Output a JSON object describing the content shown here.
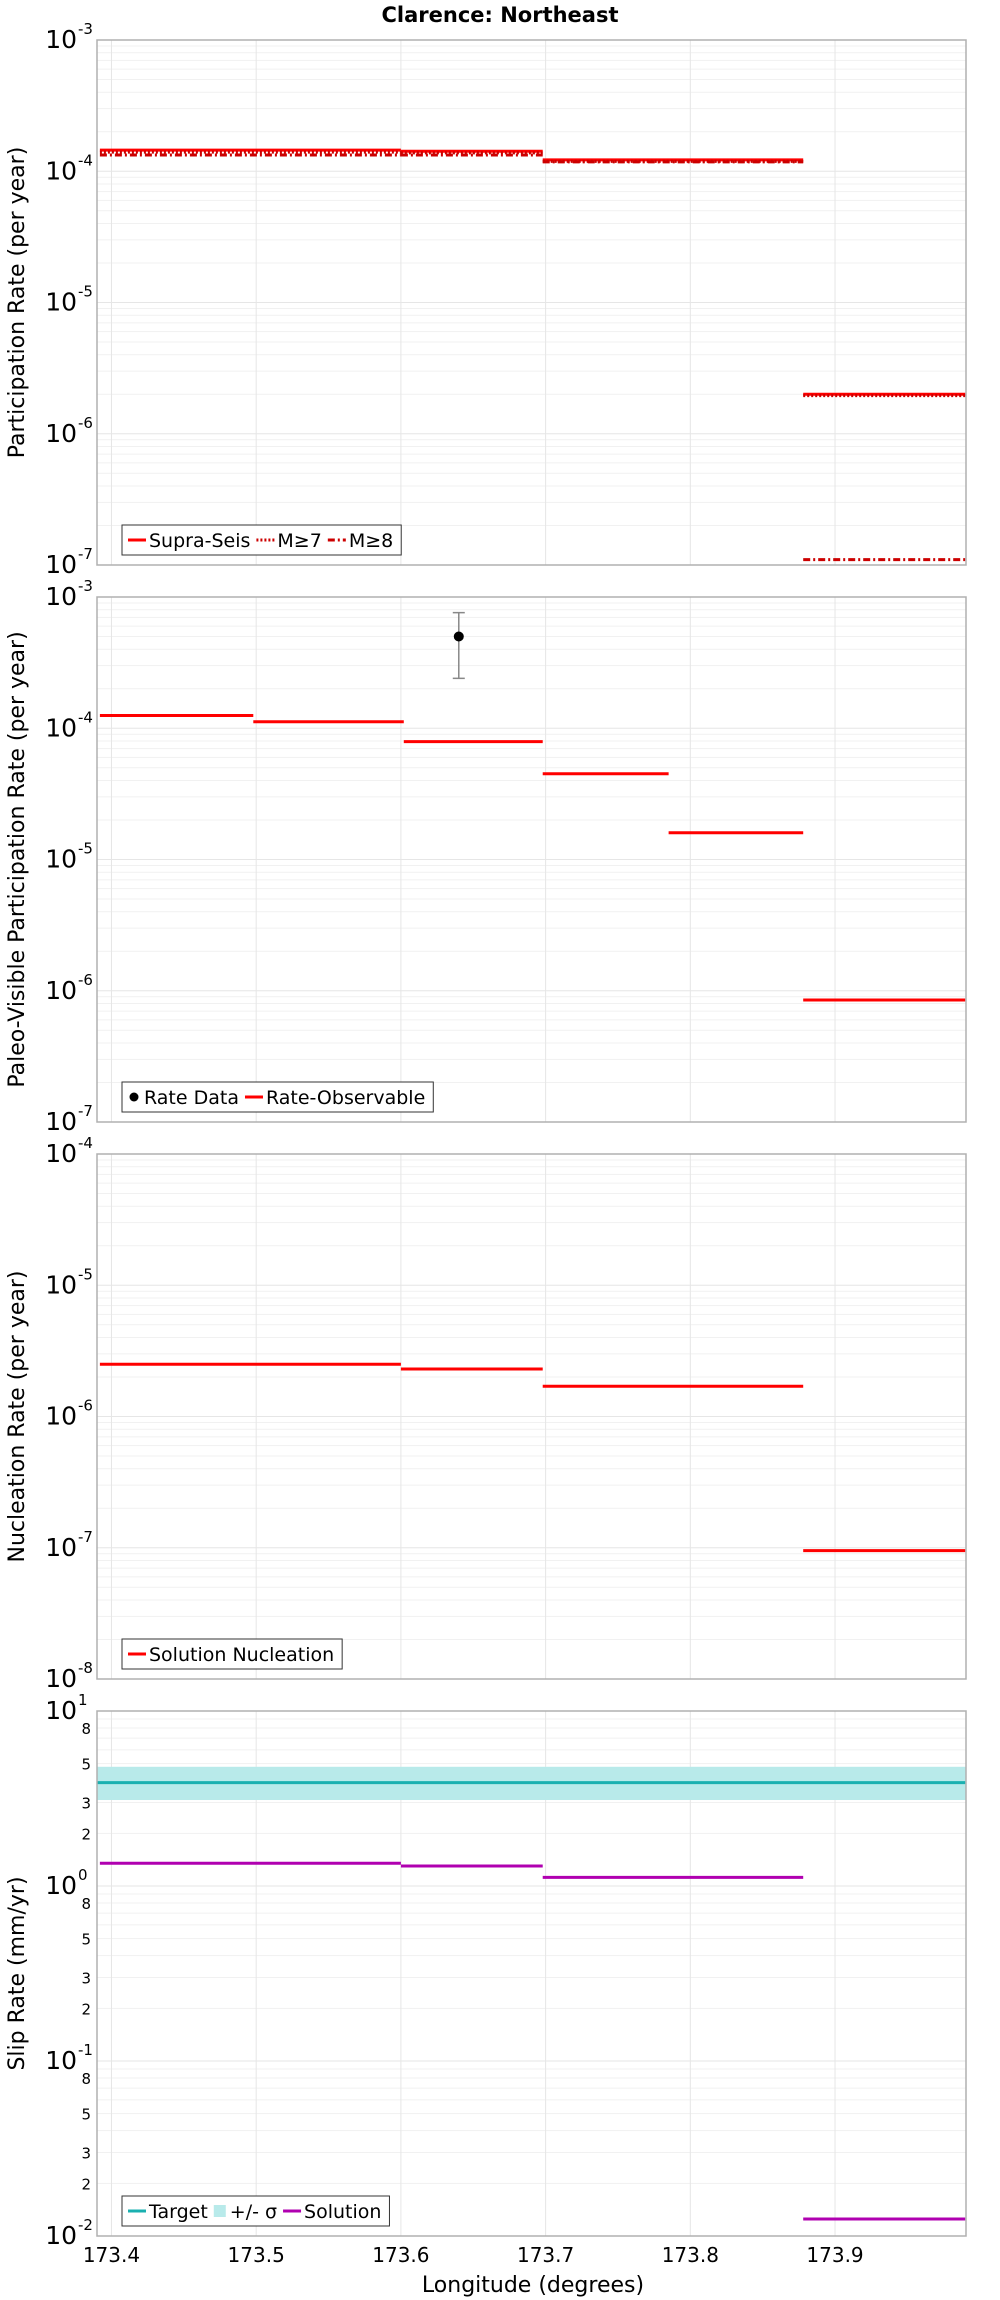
{
  "title": "Clarence: Northeast",
  "xlabel": "Longitude (degrees)",
  "xlim": [
    173.39,
    173.9905
  ],
  "xticks": [
    "173.4",
    "173.5",
    "173.6",
    "173.7",
    "173.8",
    "173.9"
  ],
  "colors": {
    "red": "#ff0000",
    "darkred": "#cc0000",
    "teal": "#1ab0b0",
    "band": "#b8eaea",
    "magenta": "#b000b0",
    "grid": "#e6e6e6"
  },
  "chart_data": [
    {
      "type": "line",
      "ylabel": "Participation Rate (per year)",
      "yscale": "log",
      "ylim": [
        1e-07,
        0.001
      ],
      "yticks": [
        {
          "base": "10",
          "exp": "-7"
        },
        {
          "base": "10",
          "exp": "-6"
        },
        {
          "base": "10",
          "exp": "-5"
        },
        {
          "base": "10",
          "exp": "-4"
        },
        {
          "base": "10",
          "exp": "-3"
        }
      ],
      "legend": [
        "Supra-Seis",
        "M≥7",
        "M≥8"
      ],
      "series": [
        {
          "name": "Supra-Seis",
          "style": "solid",
          "segments": [
            [
              173.392,
              173.6,
              0.000145
            ],
            [
              173.6,
              173.698,
              0.000142
            ],
            [
              173.698,
              173.878,
              0.000122
            ],
            [
              173.878,
              173.99,
              2e-06
            ]
          ]
        },
        {
          "name": "M≥7",
          "style": "dotted",
          "segments": [
            [
              173.392,
              173.6,
              0.00014
            ],
            [
              173.6,
              173.698,
              0.000138
            ],
            [
              173.698,
              173.878,
              0.000119
            ],
            [
              173.878,
              173.99,
              1.95e-06
            ]
          ]
        },
        {
          "name": "M≥8",
          "style": "dashdot",
          "segments": [
            [
              173.392,
              173.6,
              0.000133
            ],
            [
              173.6,
              173.698,
              0.000133
            ],
            [
              173.698,
              173.878,
              0.000118
            ],
            [
              173.878,
              173.99,
              1.1e-07
            ]
          ]
        }
      ]
    },
    {
      "type": "line",
      "ylabel": "Paleo-Visible Participation Rate (per year)",
      "yscale": "log",
      "ylim": [
        1e-07,
        0.001
      ],
      "yticks": [
        {
          "base": "10",
          "exp": "-7"
        },
        {
          "base": "10",
          "exp": "-6"
        },
        {
          "base": "10",
          "exp": "-5"
        },
        {
          "base": "10",
          "exp": "-4"
        },
        {
          "base": "10",
          "exp": "-3"
        }
      ],
      "legend": [
        "Rate Data",
        "Rate-Observable"
      ],
      "points": [
        {
          "name": "Rate Data",
          "x": 173.64,
          "y": 0.0005,
          "ylow": 0.00024,
          "yhigh": 0.00076
        }
      ],
      "series": [
        {
          "name": "Rate-Observable",
          "style": "solid",
          "segments": [
            [
              173.392,
              173.498,
              0.000125
            ],
            [
              173.498,
              173.602,
              0.000112
            ],
            [
              173.602,
              173.698,
              7.9e-05
            ],
            [
              173.698,
              173.785,
              4.5e-05
            ],
            [
              173.785,
              173.878,
              1.6e-05
            ],
            [
              173.878,
              173.99,
              8.5e-07
            ]
          ]
        }
      ]
    },
    {
      "type": "line",
      "ylabel": "Nucleation Rate (per year)",
      "yscale": "log",
      "ylim": [
        1e-08,
        0.0001
      ],
      "yticks": [
        {
          "base": "10",
          "exp": "-8"
        },
        {
          "base": "10",
          "exp": "-7"
        },
        {
          "base": "10",
          "exp": "-6"
        },
        {
          "base": "10",
          "exp": "-5"
        },
        {
          "base": "10",
          "exp": "-4"
        }
      ],
      "legend": [
        "Solution Nucleation"
      ],
      "series": [
        {
          "name": "Solution Nucleation",
          "style": "solid",
          "segments": [
            [
              173.392,
              173.6,
              2.5e-06
            ],
            [
              173.6,
              173.698,
              2.3e-06
            ],
            [
              173.698,
              173.878,
              1.7e-06
            ],
            [
              173.878,
              173.99,
              9.5e-08
            ]
          ]
        }
      ]
    },
    {
      "type": "line",
      "ylabel": "Slip Rate (mm/yr)",
      "yscale": "log",
      "ylim": [
        0.01,
        10
      ],
      "yticks": [
        {
          "base": "10",
          "exp": "-2"
        },
        {
          "base": "10",
          "exp": "-1"
        },
        {
          "base": "10",
          "exp": "0"
        },
        {
          "base": "10",
          "exp": "1"
        }
      ],
      "minor_labels": [
        "2",
        "3",
        "5",
        "8"
      ],
      "legend": [
        "Target",
        "+/- σ",
        "Solution"
      ],
      "band": {
        "name": "+/- σ",
        "low": 3.1,
        "high": 4.8
      },
      "series": [
        {
          "name": "Target",
          "style": "solid",
          "segments": [
            [
              173.39,
              173.99,
              3.9
            ]
          ]
        },
        {
          "name": "Solution",
          "style": "solid",
          "segments": [
            [
              173.392,
              173.6,
              1.35
            ],
            [
              173.6,
              173.698,
              1.3
            ],
            [
              173.698,
              173.878,
              1.12
            ],
            [
              173.878,
              173.99,
              0.0125
            ]
          ]
        }
      ]
    }
  ]
}
